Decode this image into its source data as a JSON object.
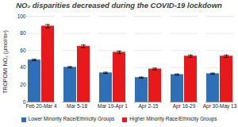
{
  "chart_data": {
    "type": "bar",
    "title": "NO₂ disparities decreased during the COVID-19 lockdown",
    "y_label": "TROPOMI NO₂ (μmol/m²)",
    "categories": [
      "Feb 20-Mar 4",
      "Mar 5-18",
      "Mar 19-Apr 1",
      "Apr 2-15",
      "Apr 16-29",
      "Apr 30-May 13"
    ],
    "series": [
      {
        "name": "Lower Minority Race/Ethnicity Groups",
        "color": "#2e6fb7",
        "values": [
          49,
          40.5,
          34,
          28.5,
          32,
          33
        ],
        "errors": [
          0.8,
          0.8,
          0.7,
          0.6,
          0.7,
          0.7
        ]
      },
      {
        "name": "Higher Minority Race/Ethnicity Groups",
        "color": "#e8191b",
        "values": [
          88.5,
          65,
          58,
          38.5,
          53.5,
          53.5
        ],
        "errors": [
          1.8,
          1.5,
          1.4,
          1,
          1.3,
          1.3
        ]
      }
    ],
    "ylim": [
      0,
      100
    ],
    "yticks": [
      0,
      20,
      40,
      60,
      80,
      100
    ],
    "grid": true,
    "legend": "bottom"
  }
}
